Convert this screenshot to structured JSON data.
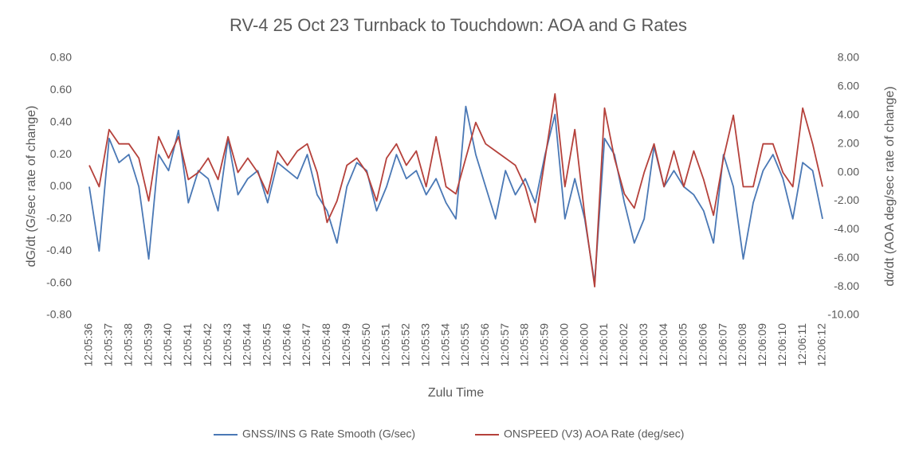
{
  "chart_data": {
    "type": "line",
    "title": "RV-4 25 Oct 23 Turnback to Touchdown:  AOA and G Rates",
    "x_label": "Zulu Time",
    "y_label": "dG/dt (G/sec rate of change)",
    "y2_label": "dα/dt (AOA deg/sec rate of change)",
    "categories": [
      "12:05:36",
      null,
      "12:05:37",
      null,
      "12:05:38",
      null,
      "12:05:39",
      null,
      "12:05:40",
      null,
      "12:05:41",
      null,
      "12:05:42",
      null,
      "12:05:43",
      null,
      "12:05:44",
      null,
      "12:05:45",
      null,
      "12:05:46",
      null,
      "12:05:47",
      null,
      "12:05:48",
      null,
      "12:05:49",
      null,
      "12:05:50",
      null,
      "12:05:51",
      null,
      "12:05:52",
      null,
      "12:05:53",
      null,
      "12:05:54",
      null,
      "12:05:55",
      null,
      "12:05:56",
      null,
      "12:05:57",
      null,
      "12:05:58",
      null,
      "12:05:59",
      null,
      "12:06:00",
      null,
      "12:06:00",
      null,
      "12:06:01",
      null,
      "12:06:02",
      null,
      "12:06:03",
      null,
      "12:06:04",
      null,
      "12:06:05",
      null,
      "12:06:06",
      null,
      "12:06:07",
      null,
      "12:06:08",
      null,
      "12:06:09",
      null,
      "12:06:10",
      null,
      "12:06:11",
      null,
      "12:06:12"
    ],
    "series": [
      {
        "name": "GNSS/INS G Rate Smooth (G/sec)",
        "color": "#4a78b5",
        "values": [
          0.0,
          -0.4,
          0.3,
          0.15,
          0.2,
          0.0,
          -0.45,
          0.2,
          0.1,
          0.35,
          -0.1,
          0.1,
          0.05,
          -0.15,
          0.3,
          -0.05,
          0.05,
          0.1,
          -0.1,
          0.15,
          0.1,
          0.05,
          0.2,
          -0.05,
          -0.15,
          -0.35,
          0.0,
          0.15,
          0.1,
          -0.15,
          0.0,
          0.2,
          0.05,
          0.1,
          -0.05,
          0.05,
          -0.1,
          -0.2,
          0.5,
          0.2,
          0.0,
          -0.2,
          0.1,
          -0.05,
          0.05,
          -0.1,
          0.2,
          0.45,
          -0.2,
          0.05,
          -0.2,
          -0.6,
          0.3,
          0.2,
          -0.1,
          -0.35,
          -0.2,
          0.25,
          0.0,
          0.1,
          0.0,
          -0.05,
          -0.15,
          -0.35,
          0.2,
          0.0,
          -0.45,
          -0.1,
          0.1,
          0.2,
          0.05,
          -0.2,
          0.15,
          0.1,
          -0.2
        ]
      },
      {
        "name": "ONSPEED (V3) AOA Rate (deg/sec)",
        "color": "#b5413b",
        "axis": "y2",
        "values": [
          0.5,
          -1.0,
          3.0,
          2.0,
          2.0,
          1.0,
          -2.0,
          2.5,
          1.0,
          2.5,
          -0.5,
          0.0,
          1.0,
          -0.5,
          2.5,
          0.0,
          1.0,
          0.0,
          -1.5,
          1.5,
          0.5,
          1.5,
          2.0,
          0.0,
          -3.5,
          -2.0,
          0.5,
          1.0,
          0.0,
          -2.0,
          1.0,
          2.0,
          0.5,
          1.5,
          -1.0,
          2.5,
          -1.0,
          -1.5,
          1.0,
          3.5,
          2.0,
          1.5,
          1.0,
          0.5,
          -1.0,
          -3.5,
          1.0,
          5.5,
          -1.0,
          3.0,
          -3.0,
          -8.0,
          4.5,
          1.0,
          -1.5,
          -2.5,
          0.0,
          2.0,
          -1.0,
          1.5,
          -1.0,
          1.5,
          -0.5,
          -3.0,
          1.0,
          4.0,
          -1.0,
          -1.0,
          2.0,
          2.0,
          0.0,
          -1.0,
          4.5,
          2.0,
          -1.0
        ]
      }
    ],
    "ylim": [
      -0.8,
      0.8
    ],
    "yticks": [
      {
        "value": -0.8,
        "label": "-0.80"
      },
      {
        "value": -0.6,
        "label": "-0.60"
      },
      {
        "value": -0.4,
        "label": "-0.40"
      },
      {
        "value": -0.2,
        "label": "-0.20"
      },
      {
        "value": 0,
        "label": "0.00"
      },
      {
        "value": 0.2,
        "label": "0.20"
      },
      {
        "value": 0.4,
        "label": "0.40"
      },
      {
        "value": 0.6,
        "label": "0.60"
      },
      {
        "value": 0.8,
        "label": "0.80"
      }
    ],
    "y2lim": [
      -10,
      8
    ],
    "y2ticks": [
      {
        "value": -10,
        "label": "-10.00"
      },
      {
        "value": -8,
        "label": "-8.00"
      },
      {
        "value": -6,
        "label": "-6.00"
      },
      {
        "value": -4,
        "label": "-4.00"
      },
      {
        "value": -2,
        "label": "-2.00"
      },
      {
        "value": 0,
        "label": "0.00"
      },
      {
        "value": 2,
        "label": "2.00"
      },
      {
        "value": 4,
        "label": "4.00"
      },
      {
        "value": 6,
        "label": "6.00"
      },
      {
        "value": 8,
        "label": "8.00"
      }
    ],
    "grid": false,
    "legend": "bottom"
  }
}
